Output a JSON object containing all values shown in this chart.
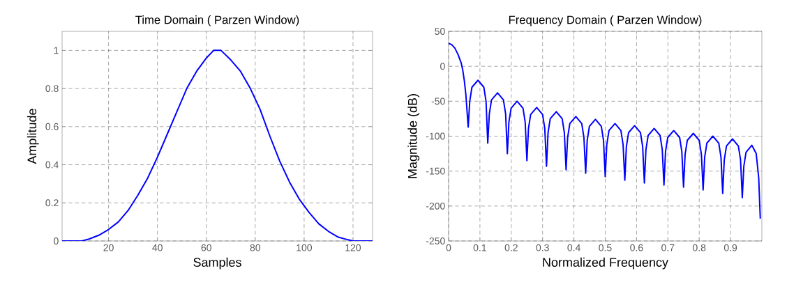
{
  "chart_data": [
    {
      "type": "line",
      "title": "Time Domain ( Parzen Window)",
      "xlabel": "Samples",
      "ylabel": "Amplitude",
      "grid": true,
      "line_style": "solid",
      "xlim": [
        1,
        128
      ],
      "ylim": [
        0,
        1.1
      ],
      "xticks": [
        20,
        40,
        60,
        80,
        100,
        120
      ],
      "yticks": [
        0,
        0.2,
        0.4,
        0.6,
        0.8,
        1
      ],
      "series": [
        {
          "color": "#0000ff",
          "x": [
            1,
            9,
            12,
            16,
            20,
            24,
            28,
            32,
            36,
            40,
            44,
            48,
            52,
            56,
            60,
            63,
            66,
            70,
            74,
            78,
            82,
            86,
            90,
            94,
            98,
            102,
            106,
            110,
            114,
            118,
            120,
            128
          ],
          "values": [
            0,
            0,
            0.01,
            0.03,
            0.06,
            0.1,
            0.16,
            0.24,
            0.33,
            0.44,
            0.56,
            0.68,
            0.8,
            0.89,
            0.96,
            1,
            1,
            0.95,
            0.89,
            0.8,
            0.69,
            0.55,
            0.42,
            0.31,
            0.22,
            0.15,
            0.09,
            0.05,
            0.02,
            0.006,
            0,
            0
          ]
        }
      ]
    },
    {
      "type": "line",
      "title": "Frequency Domain  ( Parzen Window)",
      "xlabel": "Normalized Frequency",
      "ylabel": "Magnitude (dB)",
      "grid": true,
      "line_style": "solid",
      "xlim": [
        0,
        1
      ],
      "ylim": [
        -250,
        50
      ],
      "xticks": [
        0,
        0.1,
        0.2,
        0.3,
        0.4,
        0.5,
        0.6,
        0.7,
        0.8,
        0.9
      ],
      "yticks": [
        -250,
        -200,
        -150,
        -100,
        -50,
        0,
        50
      ],
      "series": [
        {
          "color": "#0000ff",
          "x": [
            0,
            0.01,
            0.02,
            0.03,
            0.04,
            0.045,
            0.05,
            0.055,
            0.0625,
            0.0675,
            0.0745,
            0.09375,
            0.1125,
            0.1195,
            0.125,
            0.13,
            0.137,
            0.15625,
            0.175,
            0.182,
            0.1875,
            0.1925,
            0.1995,
            0.21875,
            0.2375,
            0.2445,
            0.25,
            0.255,
            0.262,
            0.28125,
            0.3,
            0.307,
            0.3125,
            0.3175,
            0.3245,
            0.34375,
            0.3625,
            0.3695,
            0.375,
            0.38,
            0.387,
            0.40625,
            0.425,
            0.432,
            0.4375,
            0.4425,
            0.4495,
            0.46875,
            0.4875,
            0.4945,
            0.5,
            0.505,
            0.512,
            0.53125,
            0.55,
            0.557,
            0.5625,
            0.5675,
            0.5745,
            0.59375,
            0.6125,
            0.6195,
            0.625,
            0.63,
            0.637,
            0.65625,
            0.675,
            0.682,
            0.6875,
            0.6925,
            0.6995,
            0.71875,
            0.7375,
            0.7445,
            0.75,
            0.755,
            0.762,
            0.78125,
            0.8,
            0.807,
            0.8125,
            0.8175,
            0.8245,
            0.84375,
            0.8625,
            0.8695,
            0.875,
            0.88,
            0.887,
            0.90625,
            0.925,
            0.932,
            0.9375,
            0.9425,
            0.9495,
            0.968,
            0.982,
            0.99,
            0.995
          ],
          "values": [
            33,
            31,
            26,
            17,
            5,
            -5,
            -20,
            -40,
            -87,
            -50,
            -30,
            -20,
            -30,
            -50,
            -110,
            -68,
            -48,
            -38,
            -48,
            -68,
            -125,
            -80,
            -60,
            -50,
            -60,
            -80,
            -135,
            -89,
            -69,
            -59,
            -69,
            -89,
            -143,
            -95,
            -75,
            -65,
            -75,
            -95,
            -148,
            -102,
            -82,
            -72,
            -82,
            -102,
            -153,
            -106,
            -86,
            -76,
            -86,
            -106,
            -158,
            -112,
            -92,
            -82,
            -92,
            -112,
            -163,
            -115,
            -95,
            -85,
            -95,
            -115,
            -167,
            -119,
            -99,
            -89,
            -99,
            -119,
            -170,
            -122,
            -102,
            -92,
            -102,
            -122,
            -173,
            -126,
            -106,
            -96,
            -106,
            -126,
            -177,
            -130,
            -110,
            -100,
            -110,
            -130,
            -182,
            -134,
            -114,
            -104,
            -114,
            -134,
            -188,
            -143,
            -123,
            -113,
            -125,
            -160,
            -218
          ]
        }
      ]
    }
  ]
}
